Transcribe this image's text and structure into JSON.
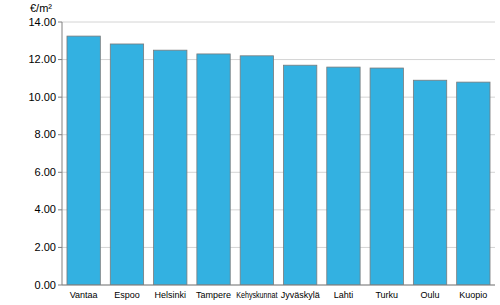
{
  "chart_data": {
    "type": "bar",
    "y_label": "€/m²",
    "categories": [
      "Vantaa",
      "Espoo",
      "Helsinki",
      "Tampere",
      "Kehyskunnat",
      "Jyväskylä",
      "Lahti",
      "Turku",
      "Oulu",
      "Kuopio"
    ],
    "values": [
      13.25,
      12.83,
      12.5,
      12.3,
      12.2,
      11.7,
      11.6,
      11.55,
      10.9,
      10.8
    ],
    "color": "#33b1e1",
    "ylim": [
      0,
      14
    ],
    "yticks": [
      {
        "value": 0,
        "label": "0.00"
      },
      {
        "value": 2,
        "label": "2.00"
      },
      {
        "value": 4,
        "label": "4.00"
      },
      {
        "value": 6,
        "label": "6.00"
      },
      {
        "value": 8,
        "label": "8.00"
      },
      {
        "value": 10,
        "label": "10.00"
      },
      {
        "value": 12,
        "label": "12.00"
      },
      {
        "value": 14,
        "label": "14.00"
      }
    ],
    "grid": true
  }
}
